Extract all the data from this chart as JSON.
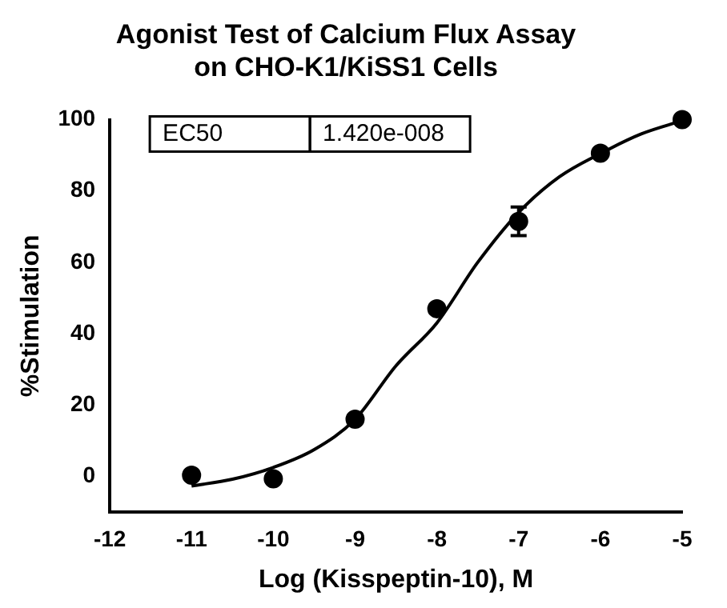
{
  "chart_data": {
    "type": "scatter",
    "title": "Agonist Test of Calcium Flux Assay\non CHO-K1/KiSS1 Cells",
    "xlabel": "Log (Kisspeptin-10), M",
    "ylabel": "%Stimulation",
    "annotations": [
      "EC50",
      "1.420e-008"
    ],
    "xlim": [
      -12,
      -5
    ],
    "xticks": [
      -12,
      -11,
      -10,
      -9,
      -8,
      -7,
      -6,
      -5
    ],
    "ylim": [
      -10,
      100
    ],
    "yticks": [
      0,
      20,
      40,
      60,
      80,
      100
    ],
    "grid": false,
    "legend": false,
    "series": [
      {
        "color": "#000000",
        "marker": "circle",
        "x": [
          -11,
          -10,
          -9,
          -8,
          -7,
          -6,
          -5
        ],
        "values": [
          0.3,
          -0.7,
          16,
          47,
          71.5,
          90.6,
          100
        ],
        "errors": [
          null,
          null,
          null,
          null,
          4,
          null,
          null
        ]
      },
      {
        "type": "line",
        "color": "#000000",
        "marker": "none",
        "x": [
          -11,
          -10.5,
          -10,
          -9.5,
          -9,
          -8.5,
          -8,
          -7.5,
          -7,
          -6.5,
          -6,
          -5.5,
          -5
        ],
        "values": [
          -2.7,
          -0.8,
          2.5,
          7.5,
          16,
          31,
          43,
          60,
          74,
          84,
          90.5,
          96,
          99.7
        ]
      }
    ]
  }
}
